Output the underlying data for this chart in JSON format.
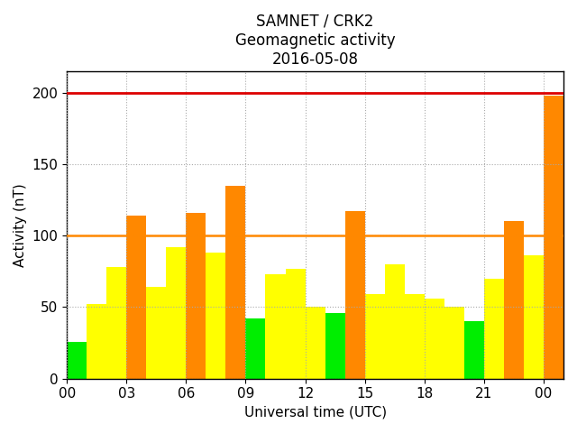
{
  "title_line1": "SAMNET / CRK2",
  "title_line2": "Geomagnetic activity",
  "title_line3": "2016-05-08",
  "xlabel": "Universal time (UTC)",
  "ylabel": "Activity (nT)",
  "ylim": [
    0,
    215
  ],
  "yticks": [
    0,
    50,
    100,
    150,
    200
  ],
  "hline_orange": 100,
  "hline_red": 200,
  "bars": [
    {
      "hour": 0,
      "height": 26,
      "color": "#00ee00"
    },
    {
      "hour": 1,
      "height": 52,
      "color": "#ffff00"
    },
    {
      "hour": 2,
      "height": 78,
      "color": "#ffff00"
    },
    {
      "hour": 3,
      "height": 114,
      "color": "#ff8800"
    },
    {
      "hour": 4,
      "height": 64,
      "color": "#ffff00"
    },
    {
      "hour": 5,
      "height": 92,
      "color": "#ffff00"
    },
    {
      "hour": 6,
      "height": 116,
      "color": "#ff8800"
    },
    {
      "hour": 7,
      "height": 88,
      "color": "#ffff00"
    },
    {
      "hour": 8,
      "height": 135,
      "color": "#ff8800"
    },
    {
      "hour": 9,
      "height": 42,
      "color": "#00ee00"
    },
    {
      "hour": 10,
      "height": 73,
      "color": "#ffff00"
    },
    {
      "hour": 11,
      "height": 77,
      "color": "#ffff00"
    },
    {
      "hour": 12,
      "height": 50,
      "color": "#ffff00"
    },
    {
      "hour": 13,
      "height": 46,
      "color": "#00ee00"
    },
    {
      "hour": 14,
      "height": 117,
      "color": "#ff8800"
    },
    {
      "hour": 15,
      "height": 59,
      "color": "#ffff00"
    },
    {
      "hour": 16,
      "height": 80,
      "color": "#ffff00"
    },
    {
      "hour": 17,
      "height": 59,
      "color": "#ffff00"
    },
    {
      "hour": 18,
      "height": 56,
      "color": "#ffff00"
    },
    {
      "hour": 19,
      "height": 50,
      "color": "#ffff00"
    },
    {
      "hour": 20,
      "height": 40,
      "color": "#00ee00"
    },
    {
      "hour": 21,
      "height": 70,
      "color": "#ffff00"
    },
    {
      "hour": 22,
      "height": 110,
      "color": "#ff8800"
    },
    {
      "hour": 23,
      "height": 86,
      "color": "#ffff00"
    },
    {
      "hour": 24,
      "height": 198,
      "color": "#ff8800"
    }
  ],
  "xtick_positions": [
    0,
    3,
    6,
    9,
    12,
    15,
    18,
    21,
    24
  ],
  "xtick_labels": [
    "00",
    "03",
    "06",
    "09",
    "12",
    "15",
    "18",
    "21",
    "00"
  ],
  "grid_color": "#aaaaaa",
  "bg_color": "#ffffff",
  "title_fontsize": 12,
  "axis_label_fontsize": 11,
  "tick_fontsize": 11
}
